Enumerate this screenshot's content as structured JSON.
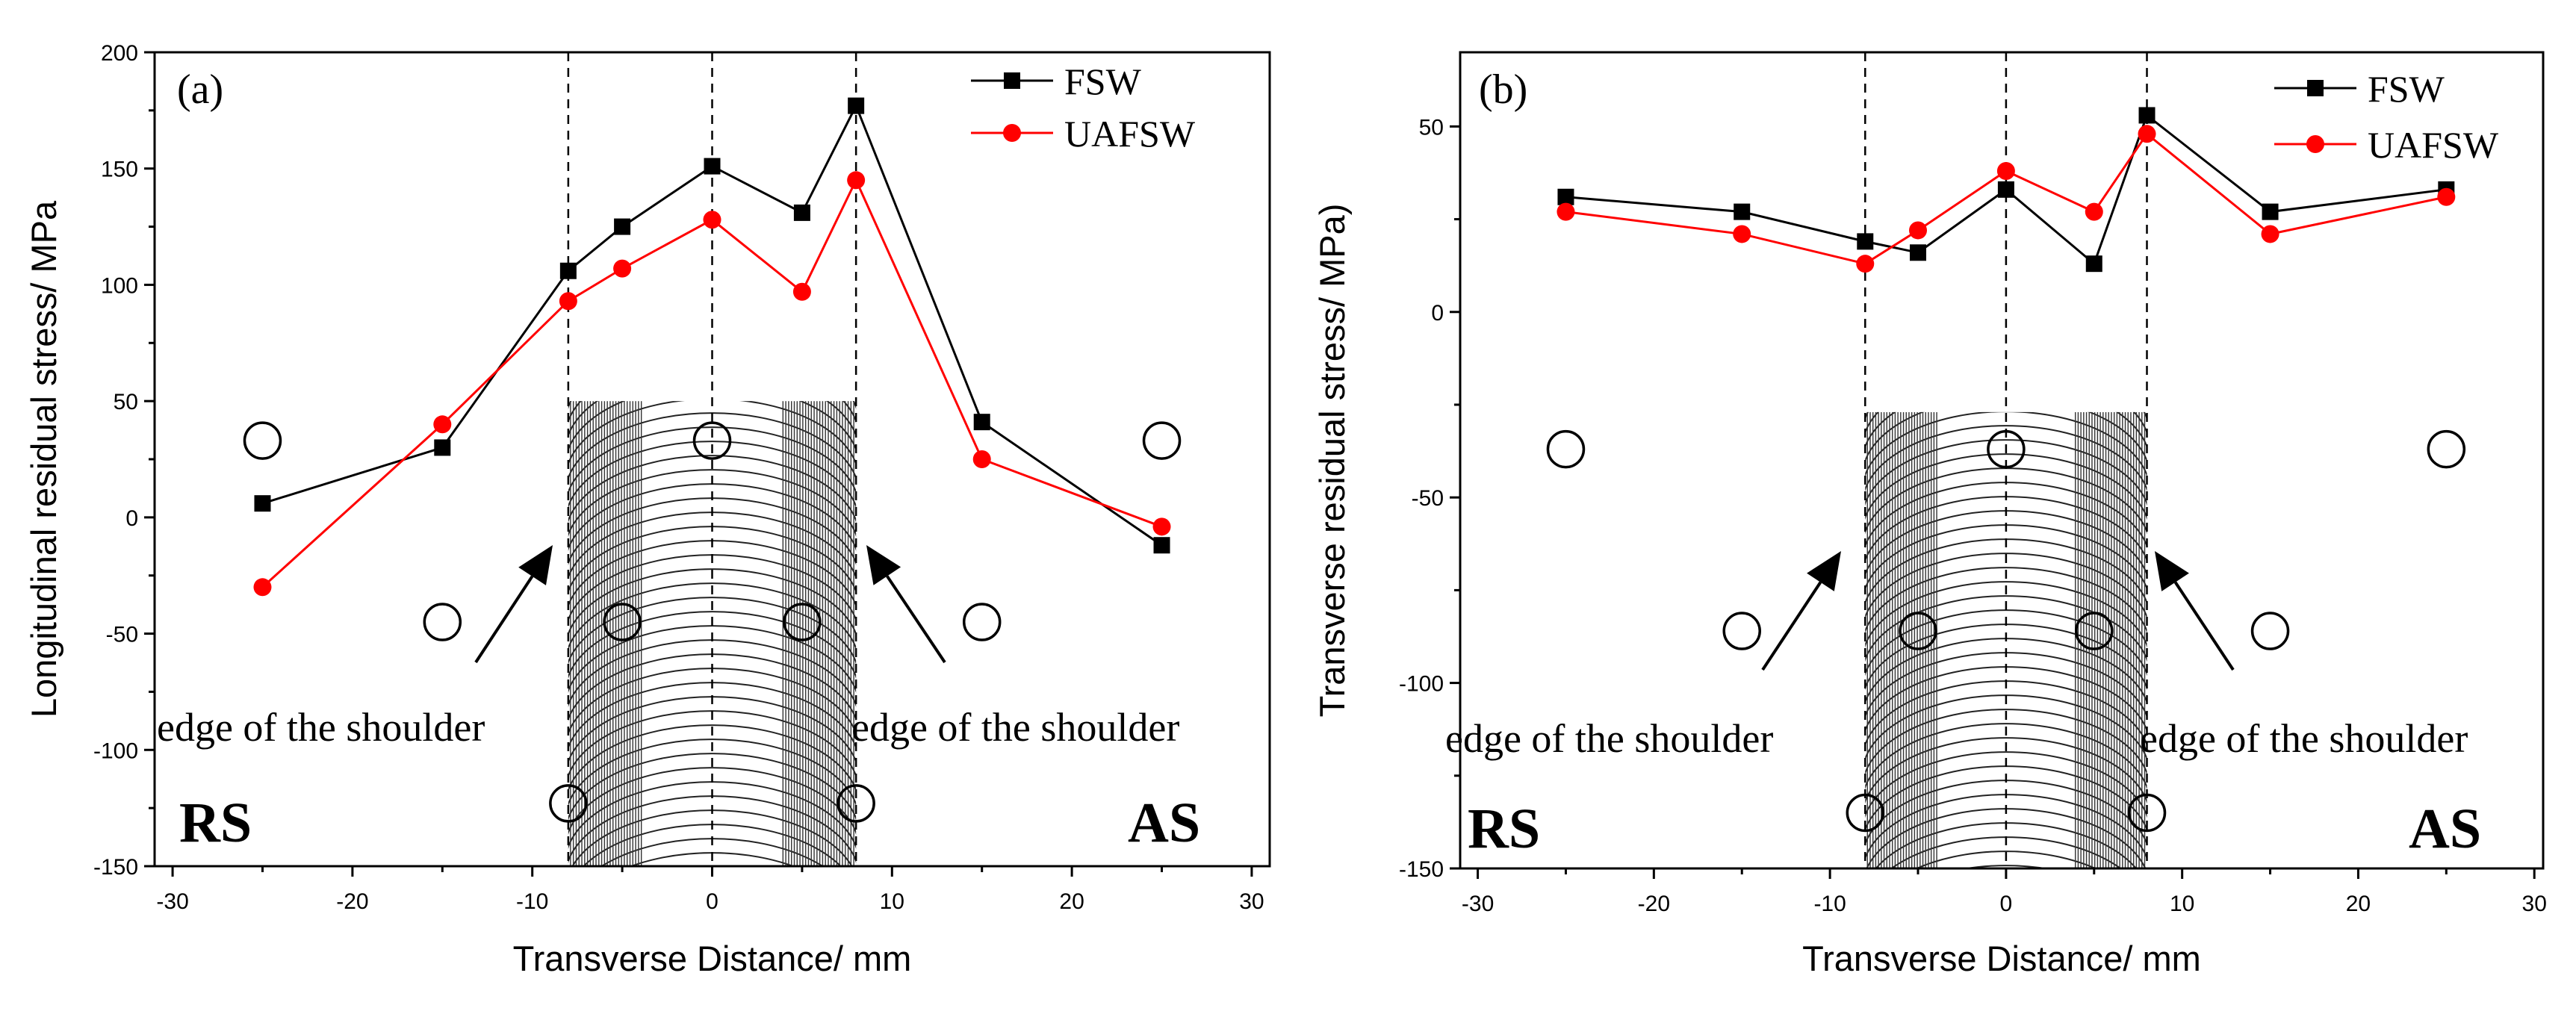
{
  "chart_data": [
    {
      "type": "line",
      "panel_label": "(a)",
      "xlabel": "Transverse Distance/ mm",
      "ylabel": "Longitudinal residual stress/ MPa",
      "xlim": [
        -31,
        31
      ],
      "ylim": [
        -150,
        200
      ],
      "xticks": [
        -30,
        -20,
        -10,
        0,
        10,
        20,
        30
      ],
      "yticks": [
        -150,
        -100,
        -50,
        0,
        50,
        100,
        150,
        200
      ],
      "legend_position": "top-right",
      "series": [
        {
          "name": "FSW",
          "color": "#000000",
          "marker": "square",
          "x": [
            -25,
            -15,
            -8,
            -5,
            0,
            5,
            8,
            15,
            25
          ],
          "y": [
            6,
            30,
            106,
            125,
            151,
            131,
            177,
            41,
            -12
          ]
        },
        {
          "name": "UAFSW",
          "color": "#ff0000",
          "marker": "circle",
          "x": [
            -25,
            -15,
            -8,
            -5,
            0,
            5,
            8,
            15,
            25
          ],
          "y": [
            -30,
            40,
            93,
            107,
            128,
            97,
            145,
            25,
            -4
          ]
        }
      ],
      "annotations": {
        "shoulder_left": "edge of the shoulder",
        "shoulder_right": "edge of the shoulder",
        "side_left": "RS",
        "side_right": "AS"
      }
    },
    {
      "type": "line",
      "panel_label": "(b)",
      "xlabel": "Transverse Distance/ mm",
      "ylabel": "Transverse residual stress/ MPa)",
      "xlim": [
        -31,
        30.5
      ],
      "ylim": [
        -150,
        70
      ],
      "xticks": [
        -30,
        -20,
        -10,
        0,
        10,
        20,
        30
      ],
      "yticks": [
        -150,
        -100,
        -50,
        0,
        50
      ],
      "legend_position": "top-right",
      "series": [
        {
          "name": "FSW",
          "color": "#000000",
          "marker": "square",
          "x": [
            -25,
            -15,
            -8,
            -5,
            0,
            5,
            8,
            15,
            25
          ],
          "y": [
            31,
            27,
            19,
            16,
            33,
            13,
            53,
            27,
            33
          ]
        },
        {
          "name": "UAFSW",
          "color": "#ff0000",
          "marker": "circle",
          "x": [
            -25,
            -15,
            -8,
            -5,
            0,
            5,
            8,
            15,
            25
          ],
          "y": [
            27,
            21,
            13,
            22,
            38,
            27,
            48,
            21,
            31
          ]
        }
      ],
      "annotations": {
        "shoulder_left": "edge of the shoulder",
        "shoulder_right": "edge of the shoulder",
        "side_left": "RS",
        "side_right": "AS"
      }
    }
  ]
}
